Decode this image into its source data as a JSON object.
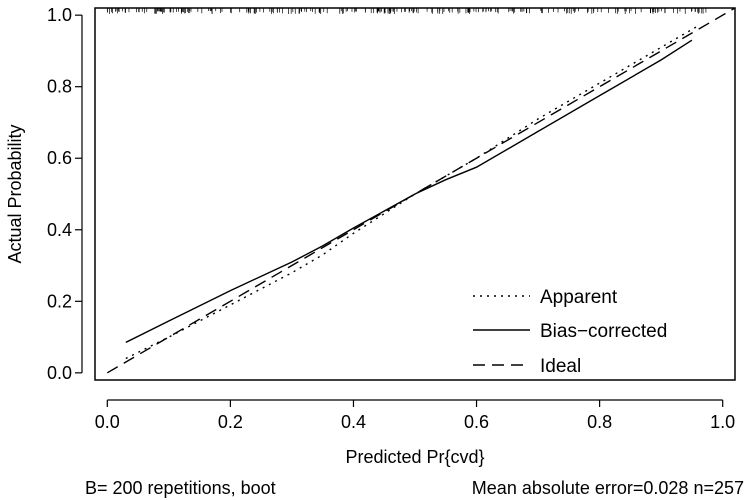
{
  "chart_data": {
    "type": "line",
    "title": "",
    "xlabel": "Predicted Pr{cvd}",
    "ylabel": "Actual Probability",
    "xlim": [
      -0.02,
      1.02
    ],
    "ylim": [
      -0.02,
      1.02
    ],
    "xticks": [
      "0.0",
      "0.2",
      "0.4",
      "0.6",
      "0.8",
      "1.0"
    ],
    "xtick_values": [
      0,
      0.2,
      0.4,
      0.6,
      0.8,
      1.0
    ],
    "yticks": [
      "0.0",
      "0.2",
      "0.4",
      "0.6",
      "0.8",
      "1.0"
    ],
    "ytick_values": [
      0,
      0.2,
      0.4,
      0.6,
      0.8,
      1.0
    ],
    "grid": false,
    "legend_position": "bottom-right",
    "series": [
      {
        "name": "Apparent",
        "style": "dotted",
        "x": [
          0.03,
          0.1,
          0.2,
          0.3,
          0.35,
          0.4,
          0.5,
          0.6,
          0.7,
          0.8,
          0.9,
          0.96
        ],
        "y": [
          0.04,
          0.1,
          0.19,
          0.28,
          0.33,
          0.39,
          0.5,
          0.6,
          0.71,
          0.81,
          0.91,
          0.97
        ]
      },
      {
        "name": "Bias−corrected",
        "style": "solid",
        "x": [
          0.03,
          0.1,
          0.2,
          0.3,
          0.35,
          0.4,
          0.5,
          0.55,
          0.6,
          0.7,
          0.8,
          0.9,
          0.95
        ],
        "y": [
          0.085,
          0.145,
          0.23,
          0.31,
          0.355,
          0.405,
          0.5,
          0.54,
          0.575,
          0.675,
          0.775,
          0.875,
          0.93
        ]
      },
      {
        "name": "Ideal",
        "style": "dashed",
        "x": [
          0,
          1.02
        ],
        "y": [
          0,
          1.02
        ]
      }
    ],
    "rug": {
      "x_from": 0.0,
      "x_to": 1.0,
      "y": 1.02,
      "count": 257
    },
    "footer_left": "B= 200 repetitions, boot",
    "footer_right": "Mean absolute error=0.028 n=257"
  }
}
